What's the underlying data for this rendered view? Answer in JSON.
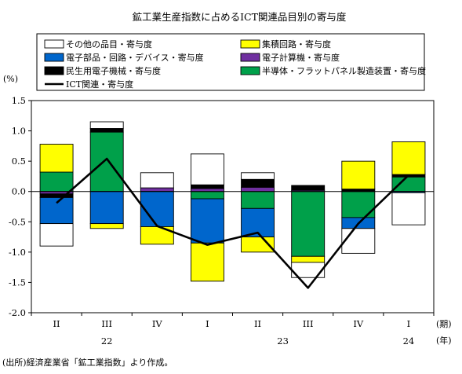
{
  "chart_data": {
    "type": "stacked bar + line",
    "title": "鉱工業生産指数に占めるICT関連品目別の寄与度",
    "y_unit_label": "(%)",
    "ylim": [
      -2.0,
      1.5
    ],
    "yticks": [
      "1.5",
      "1.0",
      "0.5",
      "0.0",
      "-0.5",
      "-1.0",
      "-1.5",
      "-2.0"
    ],
    "ytick_values": [
      1.5,
      1.0,
      0.5,
      0.0,
      -0.5,
      -1.0,
      -1.5,
      -2.0
    ],
    "categories": [
      "II",
      "III",
      "IV",
      "I",
      "II",
      "III",
      "IV",
      "I"
    ],
    "x_period_label": "(期)",
    "x_year_label": "(年)",
    "years": [
      {
        "label": "22",
        "start_index": 0,
        "end_index": 2
      },
      {
        "label": "23",
        "start_index": 3,
        "end_index": 6
      },
      {
        "label": "24",
        "start_index": 7,
        "end_index": 7
      }
    ],
    "series": [
      {
        "name": "半導体・フラットパネル製造装置・寄与度",
        "color": "#00a04a",
        "values": [
          0.32,
          0.98,
          0.0,
          -0.12,
          -0.28,
          -1.07,
          -0.43,
          0.24
        ]
      },
      {
        "name": "電子計算機・寄与度",
        "color": "#7030a0",
        "values": [
          -0.04,
          0.0,
          0.06,
          0.05,
          0.07,
          0.02,
          0.0,
          0.0
        ]
      },
      {
        "name": "民生用電子機械・寄与度",
        "color": "#000000",
        "values": [
          -0.06,
          0.06,
          0.0,
          0.06,
          0.13,
          0.08,
          0.04,
          0.04
        ]
      },
      {
        "name": "電子部品・回路・デバイス・寄与度",
        "color": "#0066cc",
        "values": [
          -0.43,
          -0.53,
          -0.58,
          -0.73,
          -0.47,
          0.0,
          -0.18,
          -0.02
        ]
      },
      {
        "name": "集積回路・寄与度",
        "color": "#ffff00",
        "values": [
          0.46,
          -0.08,
          -0.29,
          -0.63,
          -0.25,
          -0.1,
          0.46,
          0.54
        ]
      },
      {
        "name": "その他の品目・寄与度",
        "color": "#ffffff",
        "values": [
          -0.37,
          0.11,
          0.25,
          0.51,
          0.11,
          -0.25,
          -0.41,
          -0.53
        ]
      }
    ],
    "line": {
      "name": "ICT関連・寄与度",
      "color": "#000000",
      "values": [
        -0.19,
        0.54,
        -0.57,
        -0.88,
        -0.68,
        -1.59,
        -0.53,
        0.27
      ]
    },
    "legend": {
      "placement": "top",
      "left_column": [
        "その他の品目・寄与度",
        "電子部品・回路・デバイス・寄与度",
        "民生用電子機械・寄与度",
        "ICT関連・寄与度"
      ],
      "right_column": [
        "集積回路・寄与度",
        "電子計算機・寄与度",
        "半導体・フラットパネル製造装置・寄与度"
      ]
    },
    "grid": false
  },
  "source_note": "(出所)経済産業省「鉱工業指数」より作成。"
}
